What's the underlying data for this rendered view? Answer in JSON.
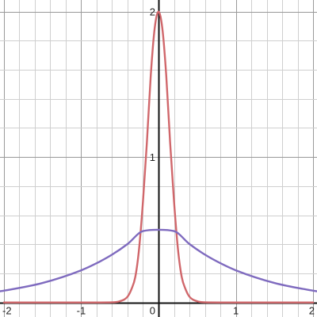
{
  "chart_data": {
    "type": "line",
    "title": "",
    "xlabel": "",
    "ylabel": "",
    "xlim": [
      -2.05,
      2.05
    ],
    "ylim": [
      -0.1,
      2.08
    ],
    "grid": true,
    "grid_minor_step": 0.2,
    "grid_major_step": 1,
    "x_ticks": [
      {
        "value": -2,
        "label": "-2"
      },
      {
        "value": -1,
        "label": "-1"
      },
      {
        "value": 0,
        "label": "0"
      },
      {
        "value": 1,
        "label": "1"
      },
      {
        "value": 2,
        "label": "2"
      }
    ],
    "y_ticks": [
      {
        "value": 1,
        "label": "1"
      },
      {
        "value": 2,
        "label": "2"
      }
    ],
    "series": [
      {
        "color": "#d0676b",
        "x": [
          -2,
          -1.5,
          -1,
          -0.8,
          -0.6,
          -0.5,
          -0.4,
          -0.35,
          -0.3,
          -0.25,
          -0.2,
          -0.15,
          -0.1,
          -0.05,
          0,
          0.05,
          0.1,
          0.15,
          0.2,
          0.25,
          0.3,
          0.35,
          0.4,
          0.5,
          0.6,
          0.8,
          1,
          1.5,
          2
        ],
        "y": [
          0,
          0,
          0,
          0,
          0.001,
          0.008,
          0.04,
          0.091,
          0.176,
          0.375,
          0.701,
          1.102,
          1.561,
          1.883,
          2.0,
          1.883,
          1.561,
          1.102,
          0.701,
          0.375,
          0.176,
          0.091,
          0.04,
          0.008,
          0.001,
          0,
          0,
          0,
          0
        ]
      },
      {
        "color": "#7f6bbf",
        "x": [
          -2.05,
          -2,
          -1.5,
          -1,
          -0.8,
          -0.6,
          -0.4,
          -0.2,
          0,
          0.2,
          0.4,
          0.6,
          0.8,
          1,
          1.5,
          2,
          2.05
        ],
        "y": [
          0.077,
          0.081,
          0.134,
          0.221,
          0.27,
          0.329,
          0.402,
          0.491,
          0.5,
          0.491,
          0.402,
          0.329,
          0.27,
          0.221,
          0.134,
          0.081,
          0.077
        ]
      }
    ]
  }
}
